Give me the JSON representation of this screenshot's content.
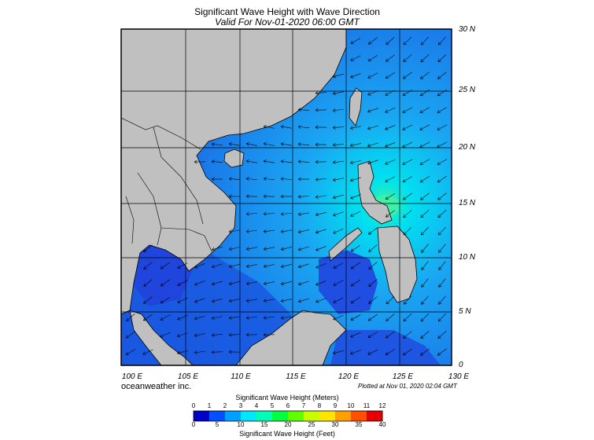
{
  "title": "Significant Wave Height with Wave Direction",
  "subtitle": "Valid For Nov-01-2020 06:00 GMT",
  "company": "oceanweather inc.",
  "plotted": "Plotted at Nov 01, 2020 02:04 GMT",
  "lat_labels": [
    "30 N",
    "25 N",
    "20 N",
    "15 N",
    "10 N",
    "5 N",
    "0"
  ],
  "lon_labels": [
    "100 E",
    "105 E",
    "110 E",
    "115 E",
    "120 E",
    "125 E",
    "130 E"
  ],
  "colorbar": {
    "meters_title": "Significant Wave Height (Meters)",
    "feet_title": "Significant Wave Height (Feet)",
    "meters_ticks": [
      "0",
      "1",
      "2",
      "3",
      "4",
      "5",
      "6",
      "7",
      "8",
      "9",
      "10",
      "11",
      "12"
    ],
    "feet_ticks": [
      "0",
      "5",
      "10",
      "15",
      "20",
      "25",
      "30",
      "35",
      "40"
    ],
    "colors": [
      "#0000c8",
      "#0050ff",
      "#00a0ff",
      "#00e6ff",
      "#00ffb4",
      "#00ff40",
      "#60ff00",
      "#c8ff00",
      "#ffe600",
      "#ffa000",
      "#ff5000",
      "#e60000"
    ]
  },
  "colors": {
    "land": "#c0c0c0",
    "sea_low": "#1450e6",
    "sea_mid": "#1a8ef0",
    "sea_high": "#00e1f0",
    "peak": "#3cf0a0"
  }
}
